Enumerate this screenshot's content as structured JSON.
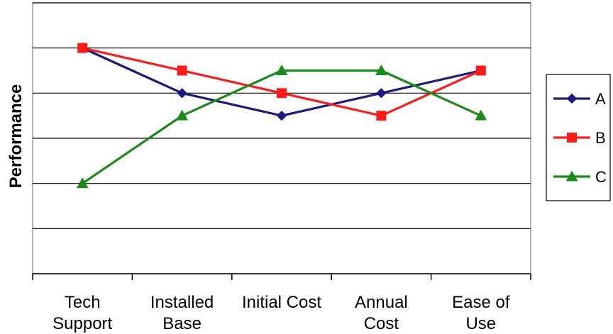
{
  "chart_data": {
    "type": "line",
    "ylabel": "Performance",
    "xlabel": "",
    "categories": [
      [
        "Tech",
        "Support"
      ],
      [
        "Installed",
        "Base"
      ],
      [
        "Initial Cost"
      ],
      [
        "Annual",
        "Cost"
      ],
      [
        "Ease of",
        "Use"
      ]
    ],
    "ylim": [
      0,
      6
    ],
    "ygrid": [
      1,
      2,
      3,
      4,
      5,
      6
    ],
    "grid": true,
    "legend_position": "right",
    "series": [
      {
        "name": "A",
        "color": "#1a1a80",
        "marker": "diamond",
        "values": [
          5,
          4,
          3.5,
          4,
          4.5
        ]
      },
      {
        "name": "B",
        "color": "#ff1a1a",
        "marker": "square",
        "values": [
          5,
          4.5,
          4,
          3.5,
          4.5
        ]
      },
      {
        "name": "C",
        "color": "#1a8a1a",
        "marker": "triangle",
        "values": [
          2,
          3.5,
          4.5,
          4.5,
          3.5
        ]
      }
    ]
  }
}
